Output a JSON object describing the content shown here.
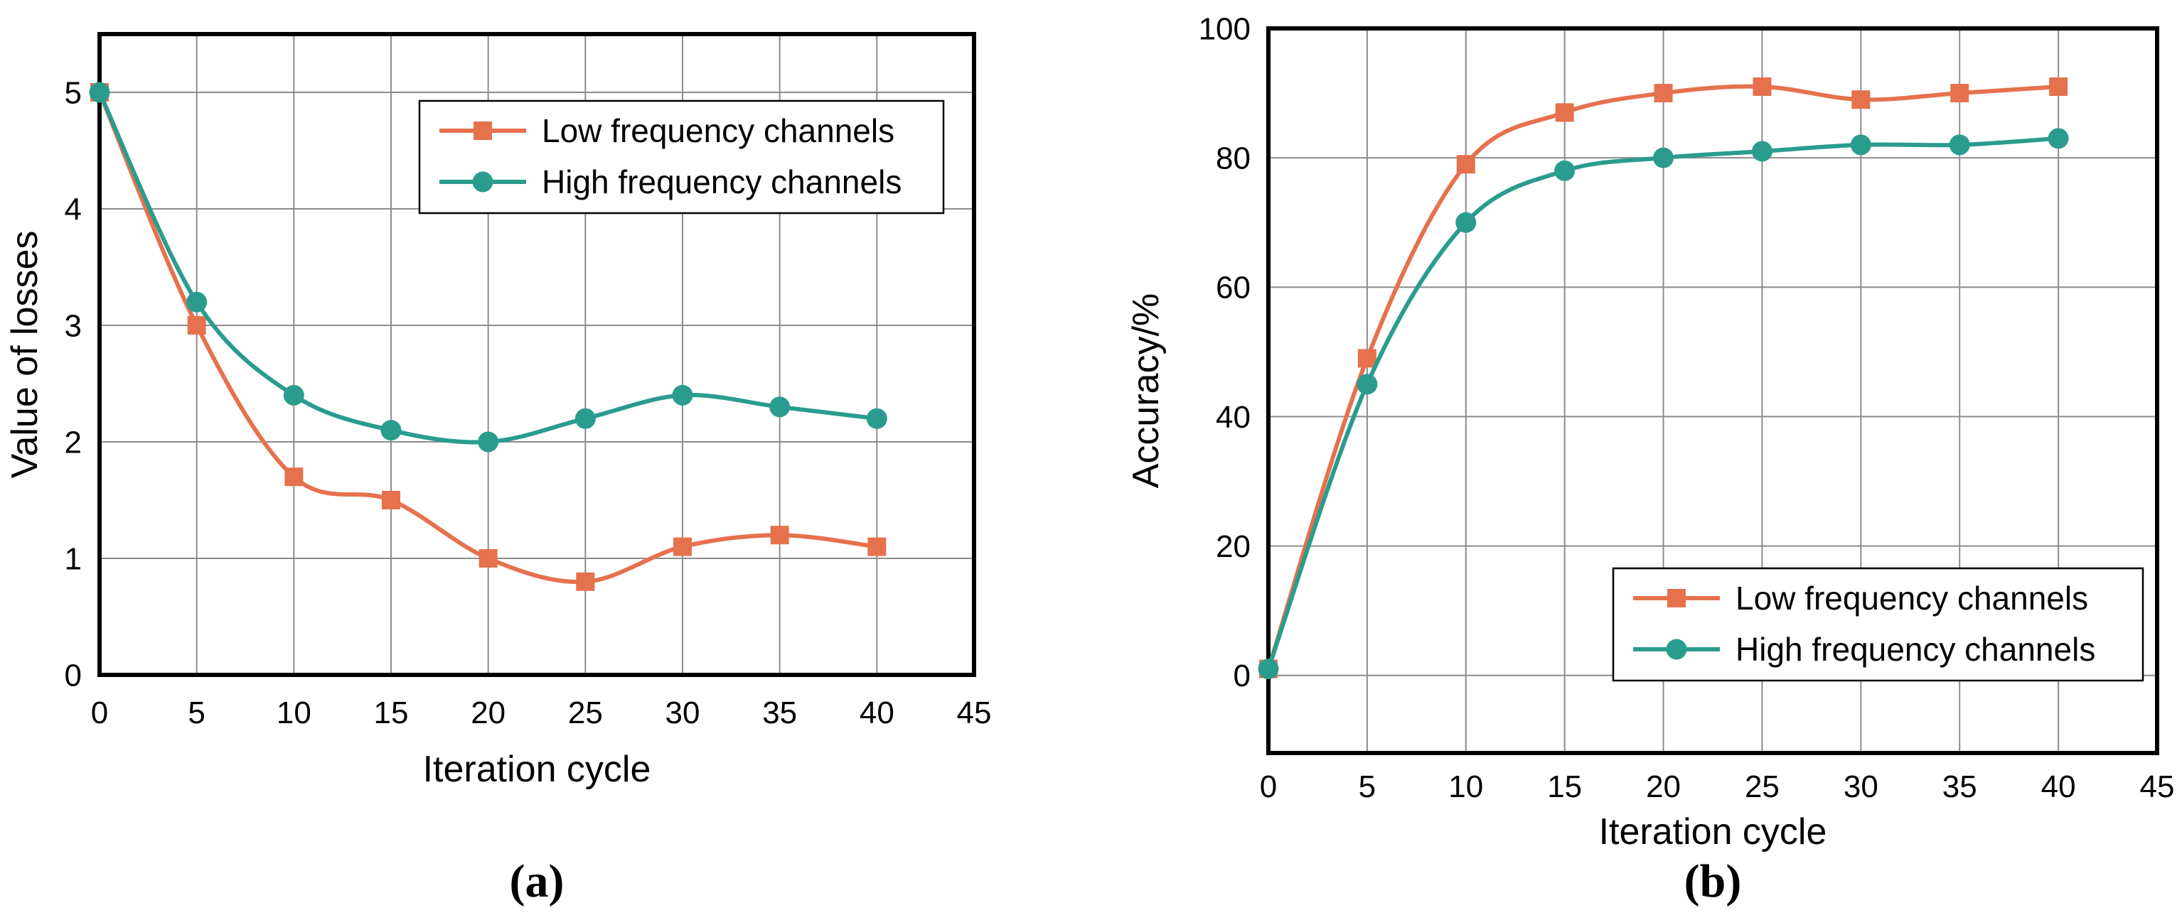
{
  "chart_data": [
    {
      "type": "line",
      "caption": "(a)",
      "title": "",
      "xlabel": "Iteration cycle",
      "ylabel": "Value of losses",
      "x": [
        0,
        5,
        10,
        15,
        20,
        25,
        30,
        35,
        40
      ],
      "series": [
        {
          "name": "Low frequency channels",
          "color": "#E6714D",
          "marker": "square",
          "values": [
            5.0,
            3.0,
            1.7,
            1.5,
            1.0,
            0.8,
            1.1,
            1.2,
            1.1
          ]
        },
        {
          "name": "High frequency channels",
          "color": "#2A9C8D",
          "marker": "circle",
          "values": [
            5.0,
            3.2,
            2.4,
            2.1,
            2.0,
            2.2,
            2.4,
            2.3,
            2.2
          ]
        }
      ],
      "xlim": [
        0,
        45
      ],
      "ylim": [
        0,
        5.5
      ],
      "xticks": [
        0,
        5,
        10,
        15,
        20,
        25,
        30,
        35,
        40,
        45
      ],
      "yticks": [
        0,
        1,
        2,
        3,
        4,
        5
      ],
      "grid": true,
      "legend_position": "top-right"
    },
    {
      "type": "line",
      "caption": "(b)",
      "title": "",
      "xlabel": "Iteration cycle",
      "ylabel": "Accuracy/%",
      "x": [
        0,
        5,
        10,
        15,
        20,
        25,
        30,
        35,
        40
      ],
      "series": [
        {
          "name": "Low frequency channels",
          "color": "#E6714D",
          "marker": "square",
          "values": [
            1,
            49,
            79,
            87,
            90,
            91,
            89,
            90,
            91
          ]
        },
        {
          "name": "High frequency channels",
          "color": "#2A9C8D",
          "marker": "circle",
          "values": [
            1,
            45,
            70,
            78,
            80,
            81,
            82,
            82,
            83
          ]
        }
      ],
      "xlim": [
        0,
        45
      ],
      "ylim": [
        -12,
        100
      ],
      "xticks": [
        0,
        5,
        10,
        15,
        20,
        25,
        30,
        35,
        40,
        45
      ],
      "yticks": [
        0,
        20,
        40,
        60,
        80,
        100
      ],
      "grid": true,
      "legend_position": "bottom-right"
    }
  ],
  "styles": {
    "grid_color": "#8C8C8C",
    "spine_color": "#000000",
    "text_color": "#000000",
    "background": "#FFFFFF"
  }
}
